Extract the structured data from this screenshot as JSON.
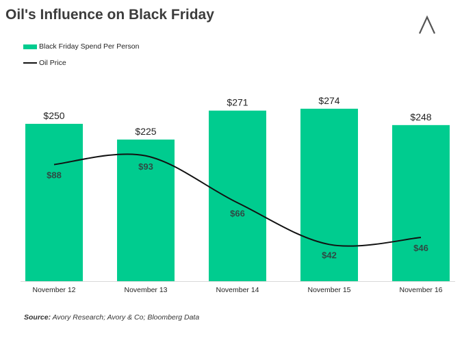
{
  "title": "Oil's Influence on Black Friday",
  "logo_icon": "avory-logo-icon",
  "legend": {
    "bar_label": "Black Friday Spend Per Person",
    "line_label": "Oil Price"
  },
  "source": {
    "prefix": "Source:",
    "text": " Avory Research; Avory & Co; Bloomberg Data"
  },
  "colors": {
    "bar": "#00cc8f",
    "line": "#111111"
  },
  "chart_data": {
    "type": "bar",
    "categories": [
      "November 12",
      "November 13",
      "November 14",
      "November 15",
      "November 16"
    ],
    "series": [
      {
        "name": "Black Friday Spend Per Person",
        "type": "bar",
        "values": [
          250,
          225,
          271,
          274,
          248
        ],
        "labels": [
          "$250",
          "$225",
          "$271",
          "$274",
          "$248"
        ]
      },
      {
        "name": "Oil Price",
        "type": "line",
        "values": [
          88,
          93,
          66,
          42,
          46
        ],
        "labels": [
          "$88",
          "$93",
          "$66",
          "$42",
          "$46"
        ]
      }
    ],
    "title": "Oil's Influence on Black Friday",
    "xlabel": "",
    "ylabel": "",
    "legend_position": "top-left",
    "grid": false
  }
}
